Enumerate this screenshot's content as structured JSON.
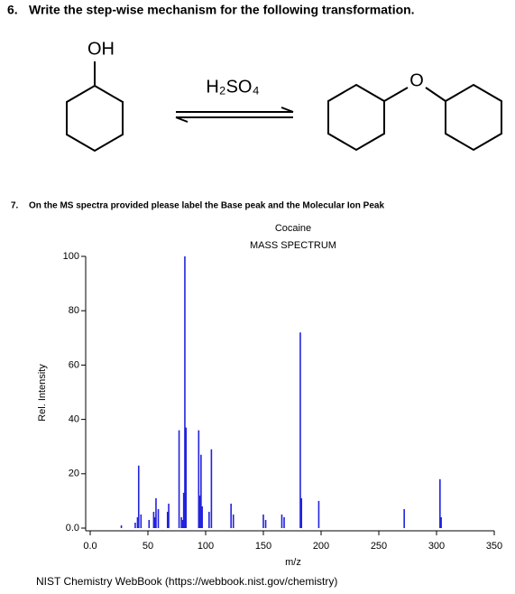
{
  "question_6": {
    "number": "6.",
    "text": "Write the step-wise mechanism for the following transformation.",
    "reactant_label": "OH",
    "reagent": "H₂SO₄",
    "product_label": "O"
  },
  "question_7": {
    "number": "7.",
    "text": "On the MS spectra provided please label the Base peak and the Molecular Ion Peak"
  },
  "chart_data": {
    "type": "spectrum",
    "title": "Cocaine",
    "subtitle": "MASS SPECTRUM",
    "x_label": "m/z",
    "y_label": "Rel. Intensity",
    "source": "NIST Chemistry WebBook (https://webbook.nist.gov/chemistry)",
    "xlim": [
      0,
      350
    ],
    "ylim": [
      0,
      100
    ],
    "xticks": [
      {
        "value": 0,
        "label": "0.0"
      },
      50,
      100,
      150,
      200,
      250,
      300,
      350
    ],
    "yticks": [
      {
        "value": 0,
        "label": "0.0"
      },
      20,
      40,
      60,
      80,
      100
    ],
    "series": [
      {
        "name": "Cocaine",
        "color": "#2222dd",
        "x": [
          27,
          39,
          41,
          42,
          44,
          51,
          55,
          56,
          57,
          59,
          67,
          68,
          77,
          79,
          80,
          81,
          82,
          83,
          94,
          95,
          96,
          97,
          103,
          105,
          122,
          124,
          150,
          152,
          166,
          168,
          182,
          183,
          198,
          272,
          303,
          304
        ],
        "values": [
          1,
          2,
          4,
          23,
          5,
          3,
          6,
          4,
          11,
          7,
          6,
          9,
          36,
          4,
          3,
          13,
          100,
          37,
          36,
          12,
          27,
          8,
          6,
          29,
          9,
          5,
          5,
          3,
          5,
          4,
          72,
          11,
          10,
          7,
          18,
          4
        ]
      }
    ]
  }
}
